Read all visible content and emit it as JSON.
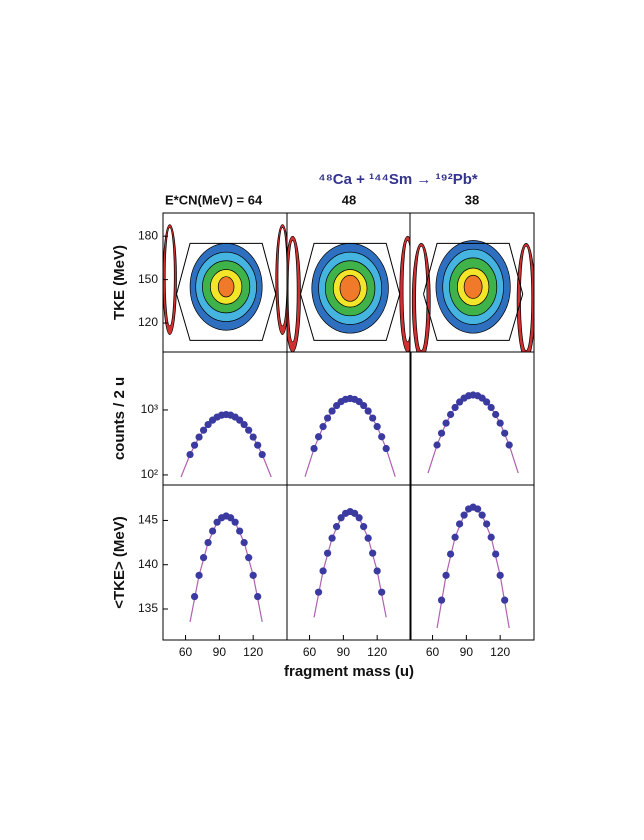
{
  "figure": {
    "title": "⁴⁸Ca + ¹⁴⁴Sm → ¹⁹²Pb*",
    "x_label": "fragment mass (u)"
  },
  "chart_data": [
    {
      "type": "contour",
      "column_label": "E*CN(MeV) = 64",
      "ylabel": "TKE (MeV)",
      "xlim": [
        40,
        150
      ],
      "ylim": [
        100,
        196
      ],
      "yticks": [
        120,
        150,
        180
      ],
      "gate": {
        "x": [
          52,
          64,
          128,
          140,
          128,
          64,
          52
        ],
        "y": [
          140,
          175,
          175,
          140,
          108,
          108,
          140
        ]
      },
      "contours": [
        {
          "cx": 96,
          "cy": 145,
          "rx": 32,
          "ry": 30,
          "color": "#2f6fc0"
        },
        {
          "cx": 96,
          "cy": 145,
          "rx": 27,
          "ry": 24,
          "color": "#45b4e0"
        },
        {
          "cx": 96,
          "cy": 145,
          "rx": 21,
          "ry": 18,
          "color": "#3fb24a"
        },
        {
          "cx": 96,
          "cy": 145,
          "rx": 14,
          "ry": 12,
          "color": "#f2e52a"
        },
        {
          "cx": 96,
          "cy": 145,
          "rx": 7,
          "ry": 7,
          "color": "#f07a2a"
        },
        {
          "cx": 46,
          "cy": 150,
          "rx": 6,
          "ry": 38,
          "color": "#d03030"
        },
        {
          "cx": 46,
          "cy": 152,
          "rx": 4,
          "ry": 34,
          "color": "#ffffff"
        },
        {
          "cx": 146,
          "cy": 150,
          "rx": 6,
          "ry": 38,
          "color": "#d03030"
        },
        {
          "cx": 146,
          "cy": 152,
          "rx": 4,
          "ry": 34,
          "color": "#ffffff"
        }
      ]
    },
    {
      "type": "contour",
      "column_label": "48",
      "xlim": [
        40,
        150
      ],
      "ylim": [
        100,
        196
      ],
      "gate": {
        "x": [
          52,
          64,
          128,
          140,
          128,
          64,
          52
        ],
        "y": [
          140,
          175,
          175,
          140,
          108,
          108,
          140
        ]
      },
      "contours": [
        {
          "cx": 96,
          "cy": 144,
          "rx": 34,
          "ry": 31,
          "color": "#2f6fc0"
        },
        {
          "cx": 96,
          "cy": 144,
          "rx": 28,
          "ry": 25,
          "color": "#45b4e0"
        },
        {
          "cx": 96,
          "cy": 144,
          "rx": 22,
          "ry": 19,
          "color": "#3fb24a"
        },
        {
          "cx": 96,
          "cy": 144,
          "rx": 15,
          "ry": 13,
          "color": "#f2e52a"
        },
        {
          "cx": 96,
          "cy": 144,
          "rx": 9,
          "ry": 9,
          "color": "#f07a2a"
        },
        {
          "cx": 45,
          "cy": 140,
          "rx": 7,
          "ry": 40,
          "color": "#d03030"
        },
        {
          "cx": 45,
          "cy": 142,
          "rx": 4,
          "ry": 35,
          "color": "#ffffff"
        },
        {
          "cx": 147,
          "cy": 140,
          "rx": 7,
          "ry": 40,
          "color": "#d03030"
        },
        {
          "cx": 147,
          "cy": 142,
          "rx": 4,
          "ry": 35,
          "color": "#ffffff"
        }
      ]
    },
    {
      "type": "contour",
      "column_label": "38",
      "xlim": [
        40,
        150
      ],
      "ylim": [
        100,
        196
      ],
      "gate": {
        "x": [
          52,
          64,
          128,
          140,
          128,
          64,
          52
        ],
        "y": [
          140,
          175,
          175,
          140,
          108,
          108,
          140
        ]
      },
      "contours": [
        {
          "cx": 96,
          "cy": 145,
          "rx": 33,
          "ry": 32,
          "color": "#2f6fc0"
        },
        {
          "cx": 96,
          "cy": 145,
          "rx": 27,
          "ry": 26,
          "color": "#45b4e0"
        },
        {
          "cx": 96,
          "cy": 145,
          "rx": 21,
          "ry": 20,
          "color": "#3fb24a"
        },
        {
          "cx": 96,
          "cy": 145,
          "rx": 14,
          "ry": 13,
          "color": "#f2e52a"
        },
        {
          "cx": 96,
          "cy": 145,
          "rx": 8,
          "ry": 8,
          "color": "#f07a2a"
        },
        {
          "cx": 50,
          "cy": 135,
          "rx": 8,
          "ry": 40,
          "color": "#d03030"
        },
        {
          "cx": 50,
          "cy": 137,
          "rx": 5,
          "ry": 36,
          "color": "#ffffff"
        },
        {
          "cx": 143,
          "cy": 135,
          "rx": 8,
          "ry": 40,
          "color": "#d03030"
        },
        {
          "cx": 143,
          "cy": 137,
          "rx": 5,
          "ry": 36,
          "color": "#ffffff"
        }
      ]
    },
    {
      "type": "scatter",
      "ylabel": "counts / 2 u",
      "log": true,
      "xlim": [
        40,
        150
      ],
      "ylim": [
        70,
        7800
      ],
      "yticks": [
        {
          "value": 100,
          "label": "10²"
        },
        {
          "value": 1000,
          "label": "10³"
        }
      ],
      "color": "#3a3aa0",
      "x": [
        64,
        68,
        72,
        76,
        80,
        84,
        88,
        92,
        96,
        100,
        104,
        108,
        112,
        116,
        120,
        124,
        128
      ],
      "values": [
        206,
        287,
        383,
        488,
        596,
        697,
        778,
        832,
        850,
        832,
        778,
        697,
        596,
        488,
        383,
        287,
        206
      ],
      "fit": {
        "color": "#b060b0",
        "x": [
          56,
          64,
          72,
          80,
          88,
          96,
          104,
          112,
          120,
          128,
          136
        ],
        "values": [
          93,
          206,
          383,
          596,
          778,
          850,
          778,
          596,
          383,
          206,
          93
        ]
      }
    },
    {
      "type": "scatter",
      "log": true,
      "xlim": [
        40,
        150
      ],
      "ylim": [
        70,
        7800
      ],
      "color": "#3a3aa0",
      "x": [
        64,
        68,
        72,
        76,
        80,
        84,
        88,
        92,
        96,
        100,
        104,
        108,
        112,
        116,
        120,
        124,
        128
      ],
      "values": [
        255,
        387,
        554,
        751,
        963,
        1169,
        1343,
        1459,
        1500,
        1459,
        1343,
        1169,
        963,
        751,
        554,
        387,
        255
      ],
      "fit": {
        "color": "#b060b0",
        "x": [
          56,
          64,
          72,
          80,
          88,
          96,
          104,
          112,
          120,
          128,
          136
        ],
        "values": [
          94,
          255,
          554,
          963,
          1343,
          1500,
          1343,
          963,
          554,
          255,
          94
        ]
      }
    },
    {
      "type": "scatter",
      "log": true,
      "xlim": [
        40,
        150
      ],
      "ylim": [
        70,
        7800
      ],
      "color": "#3a3aa0",
      "x": [
        64,
        68,
        72,
        76,
        80,
        84,
        88,
        92,
        96,
        100,
        104,
        108,
        112,
        116,
        120,
        124,
        128
      ],
      "values": [
        289,
        439,
        628,
        851,
        1091,
        1325,
        1522,
        1654,
        1700,
        1654,
        1522,
        1325,
        1091,
        851,
        628,
        439,
        289
      ],
      "fit": {
        "color": "#b060b0",
        "x": [
          56,
          64,
          72,
          80,
          88,
          96,
          104,
          112,
          120,
          128,
          136
        ],
        "values": [
          107,
          289,
          628,
          1091,
          1522,
          1700,
          1522,
          1091,
          628,
          289,
          107
        ]
      }
    },
    {
      "type": "scatter",
      "ylabel": "<TKE> (MeV)",
      "xlim": [
        40,
        150
      ],
      "ylim": [
        131.5,
        149
      ],
      "yticks": [
        135,
        140,
        145
      ],
      "xticks": [
        60,
        90,
        120
      ],
      "color": "#3a3aa0",
      "x": [
        68,
        72,
        76,
        80,
        84,
        88,
        92,
        96,
        100,
        104,
        108,
        112,
        116,
        120,
        124
      ],
      "values": [
        136.4,
        138.8,
        140.8,
        142.5,
        143.8,
        144.8,
        145.3,
        145.5,
        145.3,
        144.8,
        143.8,
        142.5,
        140.8,
        138.8,
        136.4
      ],
      "fit": {
        "color": "#b060b0",
        "x": [
          64,
          72,
          80,
          88,
          96,
          104,
          112,
          120,
          128
        ],
        "values": [
          133.55,
          138.8,
          142.5,
          144.8,
          145.5,
          144.8,
          142.5,
          138.8,
          133.55
        ]
      }
    },
    {
      "type": "scatter",
      "xlim": [
        40,
        150
      ],
      "ylim": [
        131.5,
        149
      ],
      "xticks": [
        60,
        90,
        120
      ],
      "color": "#3a3aa0",
      "x": [
        68,
        72,
        76,
        80,
        84,
        88,
        92,
        96,
        100,
        104,
        108,
        112,
        116,
        120,
        124
      ],
      "values": [
        136.9,
        139.3,
        141.3,
        143.0,
        144.3,
        145.3,
        145.8,
        146.0,
        145.8,
        145.3,
        144.3,
        143.0,
        141.3,
        139.3,
        136.9
      ],
      "fit": {
        "color": "#b060b0",
        "x": [
          64,
          72,
          80,
          88,
          96,
          104,
          112,
          120,
          128
        ],
        "values": [
          134.05,
          139.3,
          143.0,
          145.3,
          146.0,
          145.3,
          143.0,
          139.3,
          134.05
        ]
      }
    },
    {
      "type": "scatter",
      "xlim": [
        40,
        150
      ],
      "ylim": [
        131.5,
        149
      ],
      "xticks": [
        60,
        90,
        120
      ],
      "color": "#3a3aa0",
      "x": [
        68,
        72,
        76,
        80,
        84,
        88,
        92,
        96,
        100,
        104,
        108,
        112,
        116,
        120,
        124
      ],
      "values": [
        136.0,
        138.8,
        141.2,
        143.1,
        144.6,
        145.6,
        146.3,
        146.5,
        146.3,
        145.6,
        144.6,
        143.1,
        141.2,
        138.8,
        136.0
      ],
      "fit": {
        "color": "#b060b0",
        "x": [
          64,
          72,
          80,
          88,
          96,
          104,
          112,
          120,
          128
        ],
        "values": [
          132.85,
          138.8,
          143.1,
          145.6,
          146.5,
          145.6,
          143.1,
          138.8,
          132.85
        ]
      }
    }
  ]
}
